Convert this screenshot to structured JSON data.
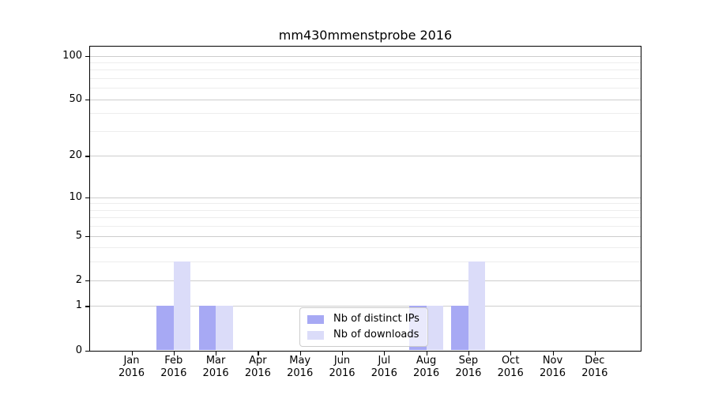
{
  "chart_data": {
    "type": "bar",
    "title": "mm430mmenstprobe 2016",
    "categories": [
      "Jan",
      "Feb",
      "Mar",
      "Apr",
      "May",
      "Jun",
      "Jul",
      "Aug",
      "Sep",
      "Oct",
      "Nov",
      "Dec"
    ],
    "category_year": "2016",
    "series": [
      {
        "name": "Nb of distinct IPs",
        "color": "#a7a9f4",
        "values": [
          0,
          1,
          1,
          0,
          0,
          0,
          0,
          1,
          1,
          0,
          0,
          0
        ]
      },
      {
        "name": "Nb of downloads",
        "color": "#dbdcf9",
        "values": [
          0,
          3,
          1,
          0,
          0,
          0,
          0,
          1,
          3,
          0,
          0,
          0
        ]
      }
    ],
    "yscale": "log1p",
    "ylim": [
      0,
      116
    ],
    "yticks_labeled": [
      0,
      1,
      2,
      5,
      10,
      20,
      50,
      100
    ],
    "yticks_minor": [
      3,
      4,
      6,
      7,
      8,
      9,
      30,
      40,
      60,
      70,
      80,
      90
    ],
    "grid": "horizontal",
    "legend": {
      "position": "lower-center",
      "entries": [
        "Nb of distinct IPs",
        "Nb of downloads"
      ]
    },
    "colors": {
      "bar_distinct_ips": "#a7a9f4",
      "bar_downloads": "#dbdcf9",
      "grid_major": "#cdcdcd",
      "grid_minor": "#ededed",
      "axis_spine": "#000000",
      "legend_border": "#cccccc"
    }
  }
}
